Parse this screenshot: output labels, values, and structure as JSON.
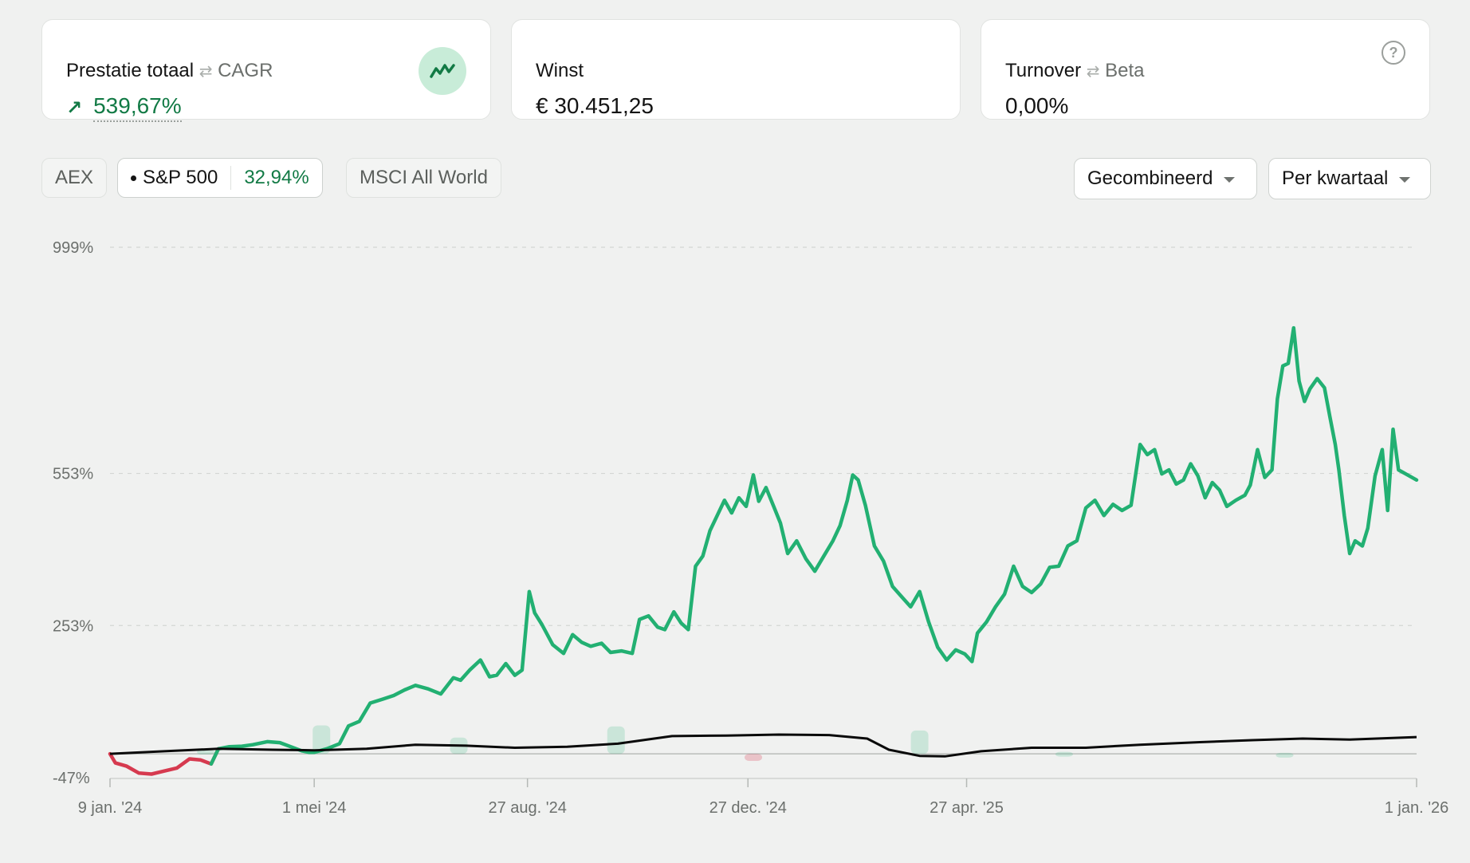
{
  "cards": [
    {
      "label": "Prestatie totaal",
      "alt_label": "CAGR",
      "value": "539,67%",
      "icon": "trend-up-icon"
    },
    {
      "label": "Winst",
      "value": "€ 30.451,25"
    },
    {
      "label": "Turnover",
      "alt_label": "Beta",
      "value": "0,00%",
      "icon": "help-icon",
      "help_glyph": "?"
    }
  ],
  "benchmarks": [
    {
      "label": "AEX"
    },
    {
      "label": "S&P 500",
      "value": "32,94%"
    },
    {
      "label": "MSCI All World"
    }
  ],
  "controls": {
    "mode": "Gecombineerd",
    "period": "Per kwartaal"
  },
  "colors": {
    "portfolio": "#22b072",
    "portfolio_negative": "#d63a4f",
    "benchmark": "#0a0a0a",
    "positive_text": "#127a45"
  },
  "chart_data": {
    "type": "line",
    "ylim": [
      -47,
      999
    ],
    "y_ticks": [
      "999%",
      "553%",
      "253%",
      "-47%"
    ],
    "y_tick_values": [
      999,
      553,
      253,
      -47
    ],
    "x_ticks": [
      "9 jan. '24",
      "1 mei '24",
      "27 aug. '24",
      "27 dec. '24",
      "27 apr. '25",
      "1 jan. '26"
    ],
    "x_tick_dates": [
      "2024-01-09",
      "2024-05-01",
      "2024-08-27",
      "2024-12-27",
      "2025-04-27",
      "2026-01-01"
    ],
    "baseline": 0,
    "series": [
      {
        "type": "line",
        "points": [
          [
            "2024-01-09",
            0
          ],
          [
            "2024-01-12",
            -18
          ],
          [
            "2024-01-18",
            -24
          ],
          [
            "2024-01-25",
            -38
          ],
          [
            "2024-02-01",
            -40
          ],
          [
            "2024-02-08",
            -34
          ],
          [
            "2024-02-15",
            -28
          ],
          [
            "2024-02-22",
            -10
          ],
          [
            "2024-02-28",
            -12
          ],
          [
            "2024-03-05",
            -20
          ],
          [
            "2024-03-09",
            10
          ],
          [
            "2024-03-15",
            14
          ],
          [
            "2024-03-22",
            15
          ],
          [
            "2024-03-28",
            18
          ],
          [
            "2024-04-05",
            24
          ],
          [
            "2024-04-12",
            22
          ],
          [
            "2024-04-18",
            14
          ],
          [
            "2024-04-24",
            6
          ],
          [
            "2024-04-28",
            3
          ],
          [
            "2024-05-01",
            3
          ],
          [
            "2024-05-08",
            10
          ],
          [
            "2024-05-15",
            20
          ],
          [
            "2024-05-20",
            55
          ],
          [
            "2024-05-26",
            64
          ],
          [
            "2024-06-01",
            100
          ],
          [
            "2024-06-08",
            108
          ],
          [
            "2024-06-14",
            115
          ],
          [
            "2024-06-20",
            126
          ],
          [
            "2024-06-26",
            135
          ],
          [
            "2024-07-03",
            128
          ],
          [
            "2024-07-10",
            118
          ],
          [
            "2024-07-17",
            150
          ],
          [
            "2024-07-21",
            145
          ],
          [
            "2024-07-26",
            165
          ],
          [
            "2024-08-01",
            185
          ],
          [
            "2024-08-06",
            152
          ],
          [
            "2024-08-10",
            155
          ],
          [
            "2024-08-15",
            178
          ],
          [
            "2024-08-20",
            155
          ],
          [
            "2024-08-24",
            165
          ],
          [
            "2024-08-28",
            320
          ],
          [
            "2024-08-31",
            278
          ],
          [
            "2024-09-04",
            255
          ],
          [
            "2024-09-10",
            215
          ],
          [
            "2024-09-16",
            198
          ],
          [
            "2024-09-21",
            235
          ],
          [
            "2024-09-26",
            220
          ],
          [
            "2024-10-01",
            212
          ],
          [
            "2024-10-07",
            218
          ],
          [
            "2024-10-12",
            200
          ],
          [
            "2024-10-18",
            203
          ],
          [
            "2024-10-24",
            198
          ],
          [
            "2024-10-28",
            265
          ],
          [
            "2024-11-02",
            272
          ],
          [
            "2024-11-07",
            250
          ],
          [
            "2024-11-11",
            245
          ],
          [
            "2024-11-16",
            280
          ],
          [
            "2024-11-20",
            258
          ],
          [
            "2024-11-24",
            245
          ],
          [
            "2024-11-28",
            370
          ],
          [
            "2024-12-02",
            390
          ],
          [
            "2024-12-06",
            440
          ],
          [
            "2024-12-10",
            470
          ],
          [
            "2024-12-14",
            500
          ],
          [
            "2024-12-18",
            475
          ],
          [
            "2024-12-22",
            505
          ],
          [
            "2024-12-26",
            488
          ],
          [
            "2024-12-30",
            550
          ],
          [
            "2025-01-02",
            498
          ],
          [
            "2025-01-06",
            525
          ],
          [
            "2025-01-10",
            490
          ],
          [
            "2025-01-14",
            455
          ],
          [
            "2025-01-18",
            395
          ],
          [
            "2025-01-23",
            420
          ],
          [
            "2025-01-28",
            385
          ],
          [
            "2025-02-02",
            360
          ],
          [
            "2025-02-07",
            390
          ],
          [
            "2025-02-12",
            420
          ],
          [
            "2025-02-16",
            450
          ],
          [
            "2025-02-20",
            500
          ],
          [
            "2025-02-23",
            550
          ],
          [
            "2025-02-26",
            540
          ],
          [
            "2025-03-02",
            490
          ],
          [
            "2025-03-07",
            410
          ],
          [
            "2025-03-12",
            380
          ],
          [
            "2025-03-17",
            330
          ],
          [
            "2025-03-22",
            310
          ],
          [
            "2025-03-27",
            290
          ],
          [
            "2025-04-01",
            320
          ],
          [
            "2025-04-06",
            260
          ],
          [
            "2025-04-11",
            210
          ],
          [
            "2025-04-16",
            185
          ],
          [
            "2025-04-21",
            205
          ],
          [
            "2025-04-26",
            197
          ],
          [
            "2025-04-30",
            182
          ],
          [
            "2025-05-03",
            238
          ],
          [
            "2025-05-08",
            260
          ],
          [
            "2025-05-13",
            290
          ],
          [
            "2025-05-18",
            315
          ],
          [
            "2025-05-23",
            370
          ],
          [
            "2025-05-28",
            330
          ],
          [
            "2025-06-02",
            318
          ],
          [
            "2025-06-07",
            335
          ],
          [
            "2025-06-12",
            368
          ],
          [
            "2025-06-17",
            370
          ],
          [
            "2025-06-22",
            410
          ],
          [
            "2025-06-27",
            420
          ],
          [
            "2025-07-02",
            485
          ],
          [
            "2025-07-07",
            500
          ],
          [
            "2025-07-12",
            470
          ],
          [
            "2025-07-17",
            492
          ],
          [
            "2025-07-22",
            480
          ],
          [
            "2025-07-27",
            490
          ],
          [
            "2025-08-01",
            610
          ],
          [
            "2025-08-05",
            590
          ],
          [
            "2025-08-09",
            600
          ],
          [
            "2025-08-13",
            552
          ],
          [
            "2025-08-17",
            560
          ],
          [
            "2025-08-21",
            532
          ],
          [
            "2025-08-25",
            540
          ],
          [
            "2025-08-29",
            572
          ],
          [
            "2025-09-02",
            548
          ],
          [
            "2025-09-06",
            505
          ],
          [
            "2025-09-10",
            535
          ],
          [
            "2025-09-14",
            520
          ],
          [
            "2025-09-18",
            488
          ],
          [
            "2025-09-23",
            500
          ],
          [
            "2025-09-28",
            510
          ],
          [
            "2025-10-01",
            530
          ],
          [
            "2025-10-05",
            600
          ],
          [
            "2025-10-09",
            545
          ],
          [
            "2025-10-13",
            560
          ],
          [
            "2025-10-16",
            700
          ],
          [
            "2025-10-19",
            765
          ],
          [
            "2025-10-22",
            770
          ],
          [
            "2025-10-25",
            840
          ],
          [
            "2025-10-28",
            735
          ],
          [
            "2025-10-31",
            695
          ],
          [
            "2025-11-03",
            720
          ],
          [
            "2025-11-07",
            740
          ],
          [
            "2025-11-11",
            722
          ],
          [
            "2025-11-14",
            665
          ],
          [
            "2025-11-17",
            610
          ],
          [
            "2025-11-19",
            560
          ],
          [
            "2025-11-22",
            470
          ],
          [
            "2025-11-25",
            395
          ],
          [
            "2025-11-28",
            420
          ],
          [
            "2025-12-02",
            410
          ],
          [
            "2025-12-05",
            445
          ],
          [
            "2025-12-09",
            548
          ],
          [
            "2025-12-13",
            600
          ],
          [
            "2025-12-16",
            480
          ],
          [
            "2025-12-19",
            640
          ],
          [
            "2025-12-22",
            560
          ],
          [
            "2025-12-26",
            552
          ],
          [
            "2026-01-01",
            540
          ]
        ]
      },
      {
        "type": "line",
        "points": [
          [
            "2024-01-09",
            0
          ],
          [
            "2024-02-08",
            5
          ],
          [
            "2024-03-09",
            10
          ],
          [
            "2024-04-08",
            8
          ],
          [
            "2024-05-01",
            7
          ],
          [
            "2024-05-30",
            10
          ],
          [
            "2024-06-26",
            18
          ],
          [
            "2024-07-24",
            16
          ],
          [
            "2024-08-20",
            12
          ],
          [
            "2024-09-18",
            14
          ],
          [
            "2024-10-16",
            20
          ],
          [
            "2024-11-15",
            35
          ],
          [
            "2024-12-15",
            36
          ],
          [
            "2025-01-13",
            38
          ],
          [
            "2025-02-10",
            37
          ],
          [
            "2025-03-03",
            30
          ],
          [
            "2025-03-15",
            8
          ],
          [
            "2025-04-01",
            -4
          ],
          [
            "2025-04-15",
            -5
          ],
          [
            "2025-05-05",
            5
          ],
          [
            "2025-06-02",
            12
          ],
          [
            "2025-07-02",
            12
          ],
          [
            "2025-08-01",
            18
          ],
          [
            "2025-09-03",
            23
          ],
          [
            "2025-10-02",
            27
          ],
          [
            "2025-10-30",
            30
          ],
          [
            "2025-11-25",
            28
          ],
          [
            "2026-01-01",
            33
          ]
        ]
      }
    ],
    "bars": [
      [
        "2024-03-02",
        8
      ],
      [
        "2024-05-05",
        56
      ],
      [
        "2024-07-20",
        32
      ],
      [
        "2024-10-15",
        54
      ],
      [
        "2024-12-30",
        -14
      ],
      [
        "2025-04-01",
        46
      ],
      [
        "2025-06-20",
        4
      ],
      [
        "2025-10-20",
        2
      ]
    ]
  }
}
